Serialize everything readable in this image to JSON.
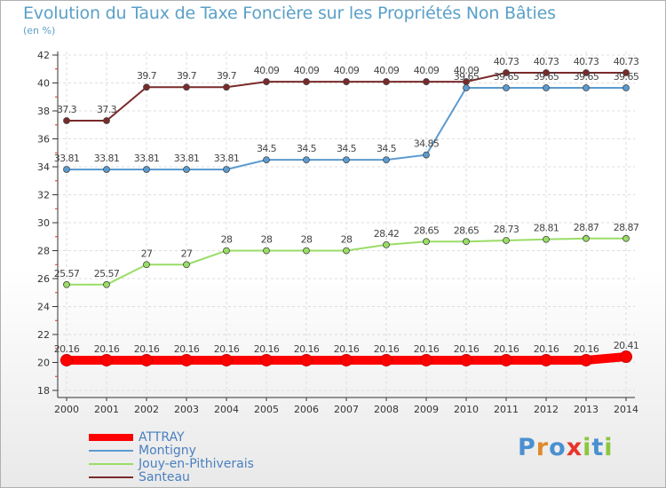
{
  "title": "Evolution du Taux de Taxe Foncière sur les Propriétés Non Bâties",
  "subtitle": "(en %)",
  "logo": {
    "p": "P",
    "r": "r",
    "o": "o",
    "x": "x",
    "i1": "i",
    "t": "t",
    "i2": "i"
  },
  "chart_data": {
    "type": "line",
    "title": "Evolution du Taux de Taxe Foncière sur les Propriétés Non Bâties",
    "ylabel": "(en %)",
    "xlabel": "",
    "x": [
      "2000",
      "2001",
      "2002",
      "2003",
      "2004",
      "2005",
      "2006",
      "2007",
      "2008",
      "2009",
      "2010",
      "2011",
      "2012",
      "2013",
      "2014"
    ],
    "ylim": [
      18,
      42
    ],
    "yticks": [
      "18",
      "20",
      "22",
      "24",
      "26",
      "28",
      "30",
      "32",
      "34",
      "36",
      "38",
      "40",
      "42"
    ],
    "grid": true,
    "legend_position": "bottom-left",
    "series": [
      {
        "name": "ATTRAY",
        "color": "#ff0000",
        "values": [
          20.16,
          20.16,
          20.16,
          20.16,
          20.16,
          20.16,
          20.16,
          20.16,
          20.16,
          20.16,
          20.16,
          20.16,
          20.16,
          20.16,
          20.41
        ],
        "labels": [
          "20.16",
          "20.16",
          "20.16",
          "20.16",
          "20.16",
          "20.16",
          "20.16",
          "20.16",
          "20.16",
          "20.16",
          "20.16",
          "20.16",
          "20.16",
          "20.16",
          "20.41"
        ]
      },
      {
        "name": "Montigny",
        "color": "#5b9bd0",
        "values": [
          33.81,
          33.81,
          33.81,
          33.81,
          33.81,
          34.5,
          34.5,
          34.5,
          34.5,
          34.85,
          39.65,
          39.65,
          39.65,
          39.65,
          39.65
        ],
        "labels": [
          "33.81",
          "33.81",
          "33.81",
          "33.81",
          "33.81",
          "34.5",
          "34.5",
          "34.5",
          "34.5",
          "34.85",
          "39.65",
          "39.65",
          "39.65",
          "39.65",
          "39.65"
        ]
      },
      {
        "name": "Jouy-en-Pithiverais",
        "color": "#99dd66",
        "values": [
          25.57,
          25.57,
          27,
          27,
          28,
          28,
          28,
          28,
          28.42,
          28.65,
          28.65,
          28.73,
          28.81,
          28.87,
          28.87
        ],
        "labels": [
          "25.57",
          "25.57",
          "27",
          "27",
          "28",
          "28",
          "28",
          "28",
          "28.42",
          "28.65",
          "28.65",
          "28.73",
          "28.81",
          "28.87",
          "28.87"
        ]
      },
      {
        "name": "Santeau",
        "color": "#7a2a2a",
        "values": [
          37.3,
          37.3,
          39.7,
          39.7,
          39.7,
          40.09,
          40.09,
          40.09,
          40.09,
          40.09,
          40.09,
          40.73,
          40.73,
          40.73,
          40.73
        ],
        "labels": [
          "37.3",
          "37.3",
          "39.7",
          "39.7",
          "39.7",
          "40.09",
          "40.09",
          "40.09",
          "40.09",
          "40.09",
          "40.09",
          "40.73",
          "40.73",
          "40.73",
          "40.73"
        ]
      }
    ]
  }
}
